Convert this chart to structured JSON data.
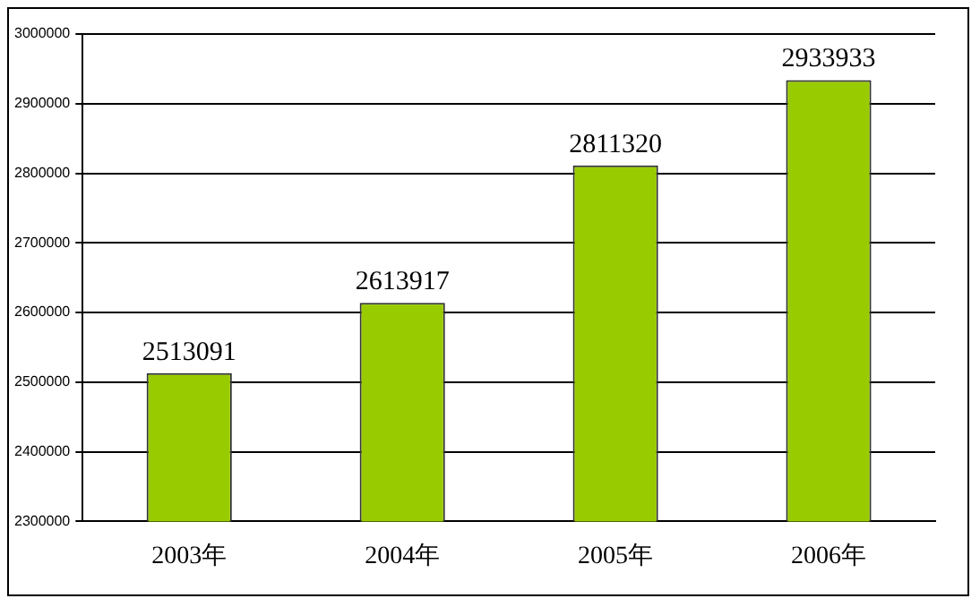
{
  "chart_data": {
    "type": "bar",
    "categories": [
      "2003年",
      "2004年",
      "2005年",
      "2006年"
    ],
    "values": [
      2513091,
      2613917,
      2811320,
      2933933
    ],
    "color": "#99cc00",
    "ylim": [
      2300000,
      3000000
    ],
    "yticks": [
      2300000,
      2400000,
      2500000,
      2600000,
      2700000,
      2800000,
      2900000,
      3000000
    ],
    "grid": "y",
    "data_labels": true
  }
}
